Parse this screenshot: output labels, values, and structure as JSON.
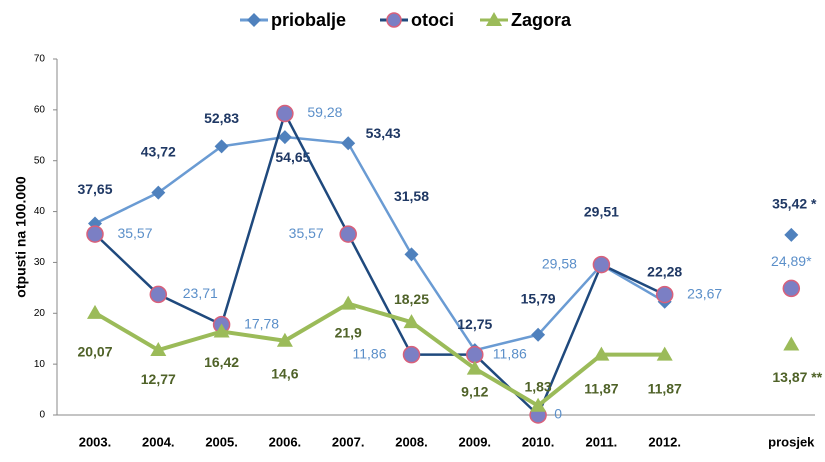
{
  "chart_data": {
    "type": "line",
    "y_label": "otpusti na 100.000",
    "categories": [
      "2003.",
      "2004.",
      "2005.",
      "2006.",
      "2007.",
      "2008.",
      "2009.",
      "2010.",
      "2011.",
      "2012.",
      null,
      "prosjek"
    ],
    "series": [
      {
        "name": "priobalje",
        "color": "#6a9bd3",
        "marker": "diamond",
        "marker_color": "#4f81bd",
        "label_color": "#1f3864",
        "values": [
          37.65,
          43.72,
          52.83,
          54.65,
          53.43,
          31.58,
          12.75,
          15.79,
          29.51,
          22.28,
          null,
          35.42
        ],
        "value_labels": [
          "37,65",
          "43,72",
          "52,83",
          "54,65",
          "53,43",
          "31,58",
          "12,75",
          "15,79",
          "29,51",
          "22,28",
          null,
          "35,42 *"
        ]
      },
      {
        "name": "otoci",
        "color": "#1f497d",
        "marker": "circle",
        "marker_color": "#7b7fc4",
        "label_color": "#5b8fc9",
        "values": [
          35.57,
          23.71,
          17.78,
          59.28,
          35.57,
          11.86,
          11.86,
          0,
          29.58,
          23.67,
          null,
          24.89
        ],
        "value_labels": [
          "35,57",
          "23,71",
          "17,78",
          "59,28",
          "35,57",
          "11,86",
          "11,86",
          "0",
          "29,58",
          "23,67",
          null,
          "24,89*"
        ]
      },
      {
        "name": "Zagora",
        "color": "#9bbb59",
        "marker": "triangle",
        "marker_color": "#9bbb59",
        "label_color": "#4f6228",
        "values": [
          20.07,
          12.77,
          16.42,
          14.6,
          21.9,
          18.25,
          9.12,
          1.83,
          11.87,
          11.87,
          null,
          13.87
        ],
        "value_labels": [
          "20,07",
          "12,77",
          "16,42",
          "14,6",
          "21,9",
          "18,25",
          "9,12",
          "1,83",
          "11,87",
          "11,87",
          null,
          "13,87 **"
        ]
      }
    ],
    "ylim": [
      0,
      70
    ],
    "yticks": [
      0,
      10,
      20,
      30,
      40,
      50,
      60,
      70
    ],
    "grid": false,
    "legend": "top"
  }
}
